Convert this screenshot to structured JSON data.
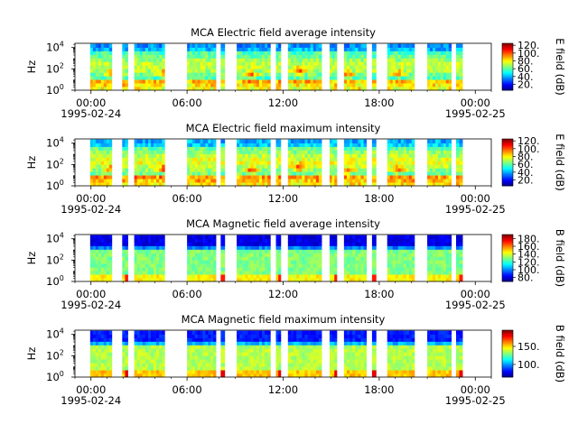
{
  "chart_data": [
    {
      "type": "heatmap",
      "title": "MCA  Electric field average intensity",
      "ylabel": "Hz",
      "yscale": "log",
      "y_ticks": [
        "10",
        "10",
        "10"
      ],
      "y_tick_exponents": [
        "0",
        "2",
        "4"
      ],
      "ylim": [
        1,
        25000
      ],
      "x_ticks": [
        "00:00",
        "06:00",
        "12:00",
        "18:00",
        "00:00"
      ],
      "x_tick_dates": [
        "1995-02-24",
        "1995-02-25"
      ],
      "xlim_hours": [
        -1,
        25
      ],
      "colorbar_label": "E field (dB)",
      "colorbar_ticks": [
        "20.",
        "40.",
        "60.",
        "80.",
        "100.",
        "120."
      ],
      "colorbar_range": [
        5,
        125
      ],
      "data_intervals_hours": [
        [
          -0.05,
          1.3
        ],
        [
          1.95,
          2.3
        ],
        [
          2.7,
          4.6
        ],
        [
          6.0,
          7.8
        ],
        [
          8.1,
          8.35
        ],
        [
          9.1,
          11.2
        ],
        [
          11.55,
          11.85
        ],
        [
          12.3,
          14.4
        ],
        [
          14.9,
          15.35
        ],
        [
          15.8,
          17.2
        ],
        [
          17.55,
          17.8
        ],
        [
          18.5,
          20.2
        ],
        [
          21.0,
          22.5
        ],
        [
          22.8,
          23.2
        ]
      ],
      "hot_spots": [
        {
          "hour": 1.3,
          "hz": 40
        },
        {
          "hour": 4.5,
          "hz": 40
        },
        {
          "hour": 10.0,
          "hz": 30
        },
        {
          "hour": 13.0,
          "hz": 60
        },
        {
          "hour": 16.0,
          "hz": 30
        },
        {
          "hour": 19.2,
          "hz": 40
        }
      ]
    },
    {
      "type": "heatmap",
      "title": "MCA  Electric field maximum intensity",
      "ylabel": "Hz",
      "yscale": "log",
      "y_ticks": [
        "10",
        "10",
        "10"
      ],
      "y_tick_exponents": [
        "0",
        "2",
        "4"
      ],
      "ylim": [
        1,
        25000
      ],
      "x_ticks": [
        "00:00",
        "06:00",
        "12:00",
        "18:00",
        "00:00"
      ],
      "x_tick_dates": [
        "1995-02-24",
        "1995-02-25"
      ],
      "xlim_hours": [
        -1,
        25
      ],
      "colorbar_label": "E field (dB)",
      "colorbar_ticks": [
        "20.",
        "40.",
        "60.",
        "80.",
        "100.",
        "120."
      ],
      "colorbar_range": [
        5,
        125
      ],
      "data_intervals_hours": [
        [
          -0.05,
          1.3
        ],
        [
          1.95,
          2.3
        ],
        [
          2.7,
          4.6
        ],
        [
          6.0,
          7.8
        ],
        [
          8.1,
          8.35
        ],
        [
          9.1,
          11.2
        ],
        [
          11.55,
          11.85
        ],
        [
          12.3,
          14.4
        ],
        [
          14.9,
          15.35
        ],
        [
          15.8,
          17.2
        ],
        [
          17.55,
          17.8
        ],
        [
          18.5,
          20.2
        ],
        [
          21.0,
          22.5
        ],
        [
          22.8,
          23.2
        ]
      ],
      "hot_spots": [
        {
          "hour": 1.3,
          "hz": 40
        },
        {
          "hour": 4.5,
          "hz": 40
        },
        {
          "hour": 10.0,
          "hz": 30
        },
        {
          "hour": 13.0,
          "hz": 60
        },
        {
          "hour": 16.0,
          "hz": 30
        },
        {
          "hour": 19.2,
          "hz": 40
        }
      ]
    },
    {
      "type": "heatmap",
      "title": "MCA  Magnetic field average intensity",
      "ylabel": "Hz",
      "yscale": "log",
      "y_ticks": [
        "10",
        "10",
        "10"
      ],
      "y_tick_exponents": [
        "0",
        "2",
        "4"
      ],
      "ylim": [
        1,
        25000
      ],
      "x_ticks": [
        "00:00",
        "06:00",
        "12:00",
        "18:00",
        "00:00"
      ],
      "x_tick_dates": [
        "1995-02-24",
        "1995-02-25"
      ],
      "xlim_hours": [
        -1,
        25
      ],
      "colorbar_label": "B field (dB)",
      "colorbar_ticks": [
        "80.",
        "100.",
        "120.",
        "140.",
        "160.",
        "180."
      ],
      "colorbar_range": [
        70,
        190
      ],
      "data_intervals_hours": [
        [
          -0.05,
          1.3
        ],
        [
          1.95,
          2.3
        ],
        [
          2.7,
          4.6
        ],
        [
          6.0,
          7.8
        ],
        [
          8.1,
          8.35
        ],
        [
          9.1,
          11.2
        ],
        [
          11.55,
          11.85
        ],
        [
          12.3,
          14.4
        ],
        [
          14.9,
          15.35
        ],
        [
          15.8,
          17.2
        ],
        [
          17.55,
          17.8
        ],
        [
          18.5,
          20.2
        ],
        [
          21.0,
          22.5
        ],
        [
          22.8,
          23.2
        ]
      ]
    },
    {
      "type": "heatmap",
      "title": "MCA  Magnetic field maximum intensity",
      "ylabel": "Hz",
      "yscale": "log",
      "y_ticks": [
        "10",
        "10",
        "10"
      ],
      "y_tick_exponents": [
        "0",
        "2",
        "4"
      ],
      "ylim": [
        1,
        25000
      ],
      "x_ticks": [
        "00:00",
        "06:00",
        "12:00",
        "18:00",
        "00:00"
      ],
      "x_tick_dates": [
        "1995-02-24",
        "1995-02-25"
      ],
      "xlim_hours": [
        -1,
        25
      ],
      "colorbar_label": "B field (dB)",
      "colorbar_ticks": [
        "100.",
        "150."
      ],
      "colorbar_range": [
        65,
        195
      ],
      "data_intervals_hours": [
        [
          -0.05,
          1.3
        ],
        [
          1.95,
          2.3
        ],
        [
          2.7,
          4.6
        ],
        [
          6.0,
          7.8
        ],
        [
          8.1,
          8.35
        ],
        [
          9.1,
          11.2
        ],
        [
          11.55,
          11.85
        ],
        [
          12.3,
          14.4
        ],
        [
          14.9,
          15.35
        ],
        [
          15.8,
          17.2
        ],
        [
          17.55,
          17.8
        ],
        [
          18.5,
          20.2
        ],
        [
          21.0,
          22.5
        ],
        [
          22.8,
          23.2
        ]
      ]
    }
  ]
}
